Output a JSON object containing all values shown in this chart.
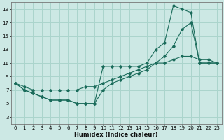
{
  "xlabel": "Humidex (Indice chaleur)",
  "bg_color": "#cce8e4",
  "grid_color": "#aad4cc",
  "line_color": "#1a6b5a",
  "xlim": [
    -0.5,
    23.5
  ],
  "ylim": [
    2,
    20
  ],
  "xticks": [
    0,
    1,
    2,
    3,
    4,
    5,
    6,
    7,
    8,
    9,
    10,
    11,
    12,
    13,
    14,
    15,
    16,
    17,
    18,
    19,
    20,
    21,
    22,
    23
  ],
  "yticks": [
    3,
    5,
    7,
    9,
    11,
    13,
    15,
    17,
    19
  ],
  "line1_x": [
    0,
    1,
    2,
    3,
    4,
    5,
    6,
    7,
    8,
    9,
    10,
    11,
    12,
    13,
    14,
    15,
    16,
    17,
    18,
    19,
    20,
    21,
    22,
    23
  ],
  "line1_y": [
    8,
    7,
    6.5,
    6,
    5.5,
    5.5,
    5.5,
    5,
    5,
    5,
    10.5,
    10.5,
    10.5,
    10.5,
    10.5,
    11,
    13,
    14,
    19.5,
    19,
    18.5,
    11,
    11,
    11
  ],
  "line2_x": [
    0,
    1,
    2,
    3,
    4,
    5,
    6,
    7,
    8,
    9,
    10,
    11,
    12,
    13,
    14,
    15,
    16,
    17,
    18,
    19,
    20,
    21,
    22,
    23
  ],
  "line2_y": [
    8,
    7,
    6.5,
    6,
    5.5,
    5.5,
    5.5,
    5,
    5,
    5,
    7,
    8,
    8.5,
    9,
    9.5,
    10,
    11,
    12,
    13.5,
    16,
    17,
    11,
    11,
    11
  ],
  "line3_x": [
    0,
    1,
    2,
    3,
    4,
    5,
    6,
    7,
    8,
    9,
    10,
    11,
    12,
    13,
    14,
    15,
    16,
    17,
    18,
    19,
    20,
    21,
    22,
    23
  ],
  "line3_y": [
    8,
    7.5,
    7,
    7,
    7,
    7,
    7,
    7,
    7.5,
    7.5,
    8,
    8.5,
    9,
    9.5,
    10,
    10.5,
    11,
    11,
    11.5,
    12,
    12,
    11.5,
    11.5,
    11
  ]
}
